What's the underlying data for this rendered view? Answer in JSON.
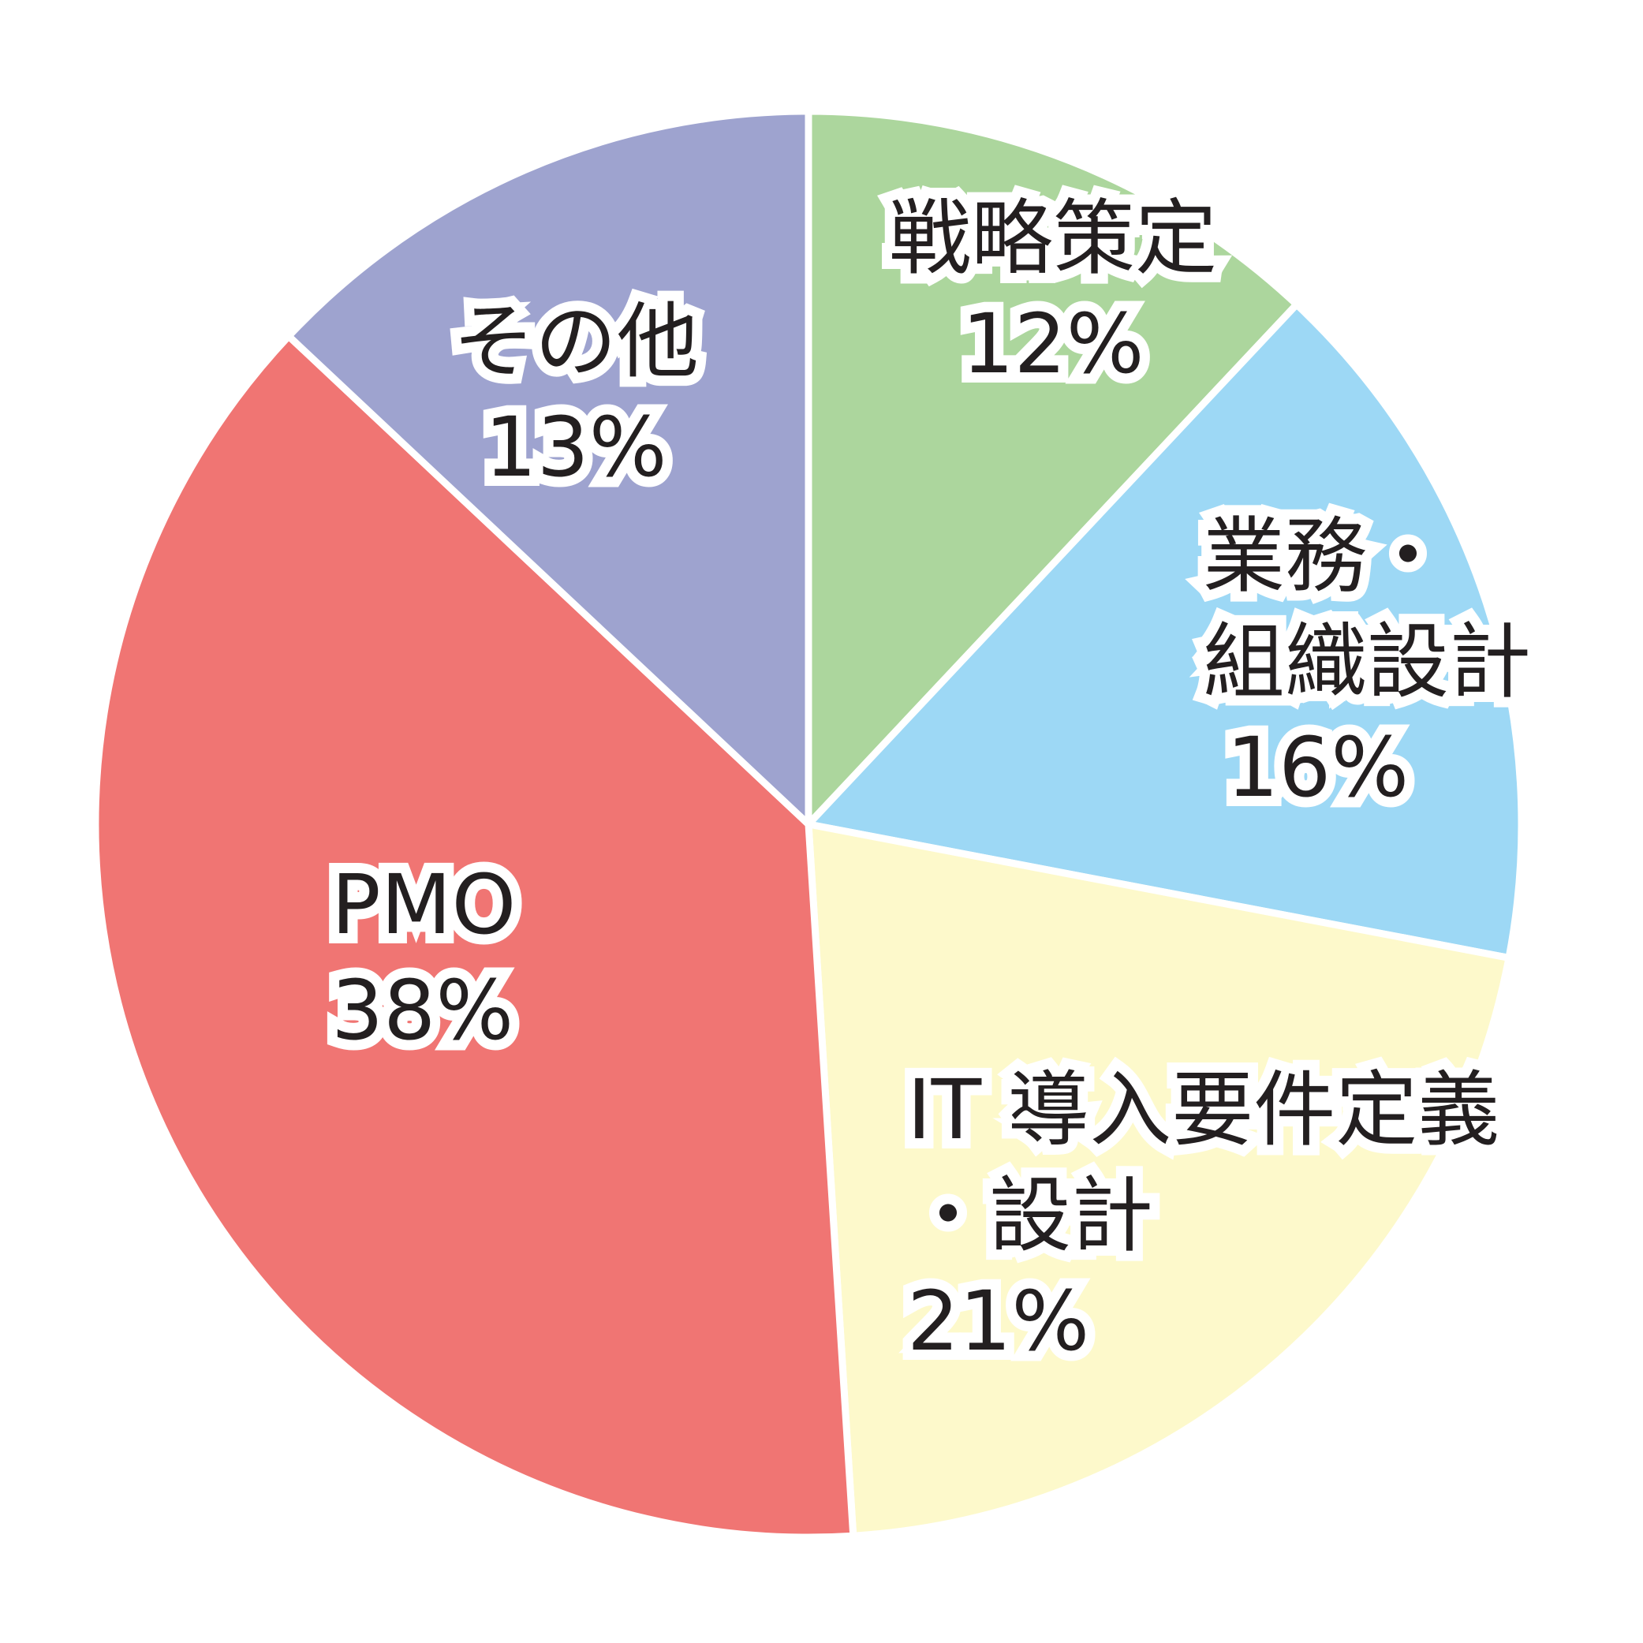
{
  "chart_data": {
    "type": "pie",
    "start": "12 o'clock",
    "direction": "clockwise",
    "slices": [
      {
        "label_lines": [
          "戦略策定"
        ],
        "value": 12,
        "value_label": "12%",
        "color": "#acd69d"
      },
      {
        "label_lines": [
          "業務・",
          "組織設計"
        ],
        "value": 16,
        "value_label": "16%",
        "color": "#9dd8f5"
      },
      {
        "label_lines": [
          "IT 導入要件定義",
          "・設計"
        ],
        "value": 21,
        "value_label": "21%",
        "color": "#fdf9cb"
      },
      {
        "label_lines": [
          "PMO"
        ],
        "value": 38,
        "value_label": "38%",
        "color": "#f07573"
      },
      {
        "label_lines": [
          "その他"
        ],
        "value": 13,
        "value_label": "13%",
        "color": "#9ea3cf"
      }
    ]
  }
}
